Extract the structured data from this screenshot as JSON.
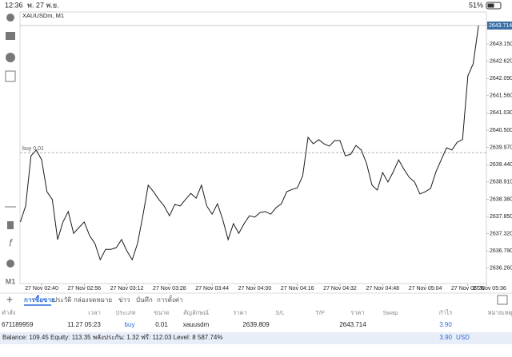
{
  "status_bar": {
    "time": "12:36",
    "date": "พ. 27 พ.ย.",
    "battery": "51%"
  },
  "chart_data": {
    "type": "line",
    "title": "XAUUSDm, M1",
    "categories": [
      null,
      null,
      null,
      null,
      "27 Nov 02:40",
      null,
      null,
      null,
      null,
      null,
      null,
      null,
      "27 Nov 02:56",
      null,
      null,
      null,
      null,
      null,
      null,
      null,
      "27 Nov 03:12",
      null,
      null,
      null,
      null,
      null,
      null,
      null,
      "27 Nov 03:28",
      null,
      null,
      null,
      null,
      null,
      null,
      null,
      "27 Nov 03:44",
      null,
      null,
      null,
      null,
      null,
      null,
      null,
      "27 Nov 04:00",
      null,
      null,
      null,
      null,
      null,
      null,
      null,
      "27 Nov 04:16",
      null,
      null,
      null,
      null,
      null,
      null,
      null,
      "27 Nov 04:32",
      null,
      null,
      null,
      null,
      null,
      null,
      null,
      "27 Nov 04:48",
      null,
      null,
      null,
      null,
      null,
      null,
      null,
      "27 Nov 05:04",
      null,
      null,
      null,
      null,
      null,
      null,
      null,
      "27 Nov 05:20",
      null,
      null,
      null,
      null,
      null,
      null,
      null,
      "27 Nov 05:36"
    ],
    "values": [
      2637.68,
      2638.17,
      2639.71,
      2639.89,
      2639.59,
      2638.61,
      2638.37,
      2637.14,
      2637.68,
      2638.0,
      2637.33,
      2637.51,
      2637.68,
      2637.26,
      2637.02,
      2636.52,
      2636.84,
      2636.84,
      2636.89,
      2637.14,
      2636.79,
      2636.52,
      2637.02,
      2637.87,
      2638.81,
      2638.61,
      2638.37,
      2638.17,
      2637.87,
      2638.22,
      2638.17,
      2638.37,
      2638.56,
      2638.41,
      2638.81,
      2638.17,
      2637.92,
      2638.24,
      2637.75,
      2637.14,
      2637.63,
      2637.33,
      2637.63,
      2637.87,
      2637.83,
      2637.97,
      2638.0,
      2637.92,
      2638.12,
      2638.24,
      2638.61,
      2638.68,
      2638.73,
      2639.1,
      2640.28,
      2640.08,
      2640.21,
      2640.08,
      2640.01,
      2640.18,
      2640.18,
      2639.71,
      2639.76,
      2640.03,
      2639.89,
      2639.47,
      2638.81,
      2638.66,
      2639.2,
      2638.91,
      2639.22,
      2639.59,
      2639.3,
      2639.05,
      2638.91,
      2638.54,
      2638.61,
      2638.71,
      2639.22,
      2639.59,
      2639.96,
      2639.89,
      2640.13,
      2640.21,
      2642.17,
      2642.54,
      2643.71,
      null,
      null,
      null,
      null,
      null,
      null
    ],
    "color": "#1a1a1a",
    "ylim": [
      2635.79,
      2644.13
    ],
    "yticks": [
      {
        "value": 2643.15,
        "label": "2643.150"
      },
      {
        "value": 2642.62,
        "label": "2642.620"
      },
      {
        "value": 2642.09,
        "label": "2642.090"
      },
      {
        "value": 2641.56,
        "label": "2641.560"
      },
      {
        "value": 2641.03,
        "label": "2641.030"
      },
      {
        "value": 2640.5,
        "label": "2640.500"
      },
      {
        "value": 2639.97,
        "label": "2639.970"
      },
      {
        "value": 2639.44,
        "label": "2639.440"
      },
      {
        "value": 2638.91,
        "label": "2638.910"
      },
      {
        "value": 2638.38,
        "label": "2638.380"
      },
      {
        "value": 2637.85,
        "label": "2637.850"
      },
      {
        "value": 2637.32,
        "label": "2637.320"
      },
      {
        "value": 2636.79,
        "label": "2636.790"
      },
      {
        "value": 2636.26,
        "label": "2636.260"
      }
    ],
    "current_price": 2643.714,
    "order_line": {
      "label": "buy 0.01",
      "value": 2639.809
    }
  },
  "side_toolbar": {
    "timeframe": "M1"
  },
  "tabs": [
    "การซื้อขาย",
    "ประวัติ",
    "กล่องจดหมาย",
    "ข่าว",
    "บันทึก",
    "การตั้งค่า"
  ],
  "active_tab": 0,
  "table": {
    "columns": [
      "คำสั่ง",
      "เวลา",
      "ประเภท",
      "ขนาด",
      "สัญลักษณ์",
      "ราคา",
      "S/L",
      "T/P",
      "ราคา",
      "Swap",
      "กำไร",
      "หมายเหตุ"
    ],
    "row": {
      "order": "671189959",
      "time": "11.27 05:23",
      "type": "buy",
      "size": "0.01",
      "symbol": "xauusdm",
      "price": "2639.809",
      "current_price": "2643.714",
      "profit": "3.90"
    }
  },
  "footer": {
    "summary": "Balance: 109.45 Equity: 113.35 พลังประกัน: 1.32 ฟรี: 112.03 Level: 8 587.74%",
    "profit": "3.90",
    "currency": "USD"
  }
}
